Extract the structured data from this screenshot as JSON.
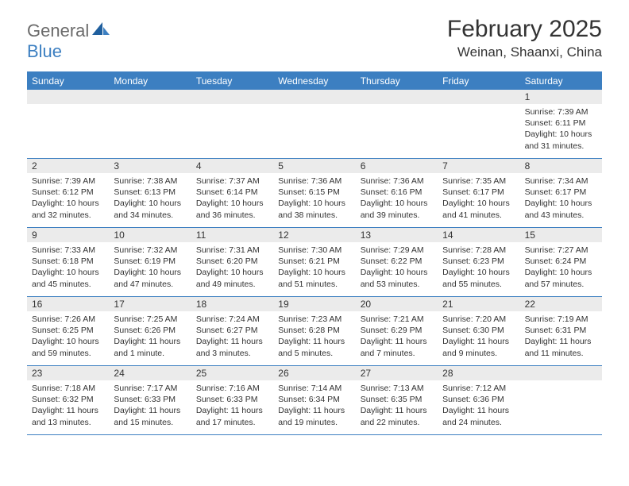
{
  "logo": {
    "general": "General",
    "blue": "Blue"
  },
  "title": "February 2025",
  "location": "Weinan, Shaanxi, China",
  "colors": {
    "header_bg": "#3c7fc1",
    "header_text": "#ffffff",
    "daynum_bg": "#ebebeb",
    "text": "#333333",
    "logo_gray": "#6b6b6b",
    "logo_blue": "#3c7fc1",
    "border": "#3c7fc1"
  },
  "day_headers": [
    "Sunday",
    "Monday",
    "Tuesday",
    "Wednesday",
    "Thursday",
    "Friday",
    "Saturday"
  ],
  "weeks": [
    [
      {
        "n": "",
        "sr": "",
        "ss": "",
        "dl": ""
      },
      {
        "n": "",
        "sr": "",
        "ss": "",
        "dl": ""
      },
      {
        "n": "",
        "sr": "",
        "ss": "",
        "dl": ""
      },
      {
        "n": "",
        "sr": "",
        "ss": "",
        "dl": ""
      },
      {
        "n": "",
        "sr": "",
        "ss": "",
        "dl": ""
      },
      {
        "n": "",
        "sr": "",
        "ss": "",
        "dl": ""
      },
      {
        "n": "1",
        "sr": "Sunrise: 7:39 AM",
        "ss": "Sunset: 6:11 PM",
        "dl": "Daylight: 10 hours and 31 minutes."
      }
    ],
    [
      {
        "n": "2",
        "sr": "Sunrise: 7:39 AM",
        "ss": "Sunset: 6:12 PM",
        "dl": "Daylight: 10 hours and 32 minutes."
      },
      {
        "n": "3",
        "sr": "Sunrise: 7:38 AM",
        "ss": "Sunset: 6:13 PM",
        "dl": "Daylight: 10 hours and 34 minutes."
      },
      {
        "n": "4",
        "sr": "Sunrise: 7:37 AM",
        "ss": "Sunset: 6:14 PM",
        "dl": "Daylight: 10 hours and 36 minutes."
      },
      {
        "n": "5",
        "sr": "Sunrise: 7:36 AM",
        "ss": "Sunset: 6:15 PM",
        "dl": "Daylight: 10 hours and 38 minutes."
      },
      {
        "n": "6",
        "sr": "Sunrise: 7:36 AM",
        "ss": "Sunset: 6:16 PM",
        "dl": "Daylight: 10 hours and 39 minutes."
      },
      {
        "n": "7",
        "sr": "Sunrise: 7:35 AM",
        "ss": "Sunset: 6:17 PM",
        "dl": "Daylight: 10 hours and 41 minutes."
      },
      {
        "n": "8",
        "sr": "Sunrise: 7:34 AM",
        "ss": "Sunset: 6:17 PM",
        "dl": "Daylight: 10 hours and 43 minutes."
      }
    ],
    [
      {
        "n": "9",
        "sr": "Sunrise: 7:33 AM",
        "ss": "Sunset: 6:18 PM",
        "dl": "Daylight: 10 hours and 45 minutes."
      },
      {
        "n": "10",
        "sr": "Sunrise: 7:32 AM",
        "ss": "Sunset: 6:19 PM",
        "dl": "Daylight: 10 hours and 47 minutes."
      },
      {
        "n": "11",
        "sr": "Sunrise: 7:31 AM",
        "ss": "Sunset: 6:20 PM",
        "dl": "Daylight: 10 hours and 49 minutes."
      },
      {
        "n": "12",
        "sr": "Sunrise: 7:30 AM",
        "ss": "Sunset: 6:21 PM",
        "dl": "Daylight: 10 hours and 51 minutes."
      },
      {
        "n": "13",
        "sr": "Sunrise: 7:29 AM",
        "ss": "Sunset: 6:22 PM",
        "dl": "Daylight: 10 hours and 53 minutes."
      },
      {
        "n": "14",
        "sr": "Sunrise: 7:28 AM",
        "ss": "Sunset: 6:23 PM",
        "dl": "Daylight: 10 hours and 55 minutes."
      },
      {
        "n": "15",
        "sr": "Sunrise: 7:27 AM",
        "ss": "Sunset: 6:24 PM",
        "dl": "Daylight: 10 hours and 57 minutes."
      }
    ],
    [
      {
        "n": "16",
        "sr": "Sunrise: 7:26 AM",
        "ss": "Sunset: 6:25 PM",
        "dl": "Daylight: 10 hours and 59 minutes."
      },
      {
        "n": "17",
        "sr": "Sunrise: 7:25 AM",
        "ss": "Sunset: 6:26 PM",
        "dl": "Daylight: 11 hours and 1 minute."
      },
      {
        "n": "18",
        "sr": "Sunrise: 7:24 AM",
        "ss": "Sunset: 6:27 PM",
        "dl": "Daylight: 11 hours and 3 minutes."
      },
      {
        "n": "19",
        "sr": "Sunrise: 7:23 AM",
        "ss": "Sunset: 6:28 PM",
        "dl": "Daylight: 11 hours and 5 minutes."
      },
      {
        "n": "20",
        "sr": "Sunrise: 7:21 AM",
        "ss": "Sunset: 6:29 PM",
        "dl": "Daylight: 11 hours and 7 minutes."
      },
      {
        "n": "21",
        "sr": "Sunrise: 7:20 AM",
        "ss": "Sunset: 6:30 PM",
        "dl": "Daylight: 11 hours and 9 minutes."
      },
      {
        "n": "22",
        "sr": "Sunrise: 7:19 AM",
        "ss": "Sunset: 6:31 PM",
        "dl": "Daylight: 11 hours and 11 minutes."
      }
    ],
    [
      {
        "n": "23",
        "sr": "Sunrise: 7:18 AM",
        "ss": "Sunset: 6:32 PM",
        "dl": "Daylight: 11 hours and 13 minutes."
      },
      {
        "n": "24",
        "sr": "Sunrise: 7:17 AM",
        "ss": "Sunset: 6:33 PM",
        "dl": "Daylight: 11 hours and 15 minutes."
      },
      {
        "n": "25",
        "sr": "Sunrise: 7:16 AM",
        "ss": "Sunset: 6:33 PM",
        "dl": "Daylight: 11 hours and 17 minutes."
      },
      {
        "n": "26",
        "sr": "Sunrise: 7:14 AM",
        "ss": "Sunset: 6:34 PM",
        "dl": "Daylight: 11 hours and 19 minutes."
      },
      {
        "n": "27",
        "sr": "Sunrise: 7:13 AM",
        "ss": "Sunset: 6:35 PM",
        "dl": "Daylight: 11 hours and 22 minutes."
      },
      {
        "n": "28",
        "sr": "Sunrise: 7:12 AM",
        "ss": "Sunset: 6:36 PM",
        "dl": "Daylight: 11 hours and 24 minutes."
      },
      {
        "n": "",
        "sr": "",
        "ss": "",
        "dl": ""
      }
    ]
  ]
}
